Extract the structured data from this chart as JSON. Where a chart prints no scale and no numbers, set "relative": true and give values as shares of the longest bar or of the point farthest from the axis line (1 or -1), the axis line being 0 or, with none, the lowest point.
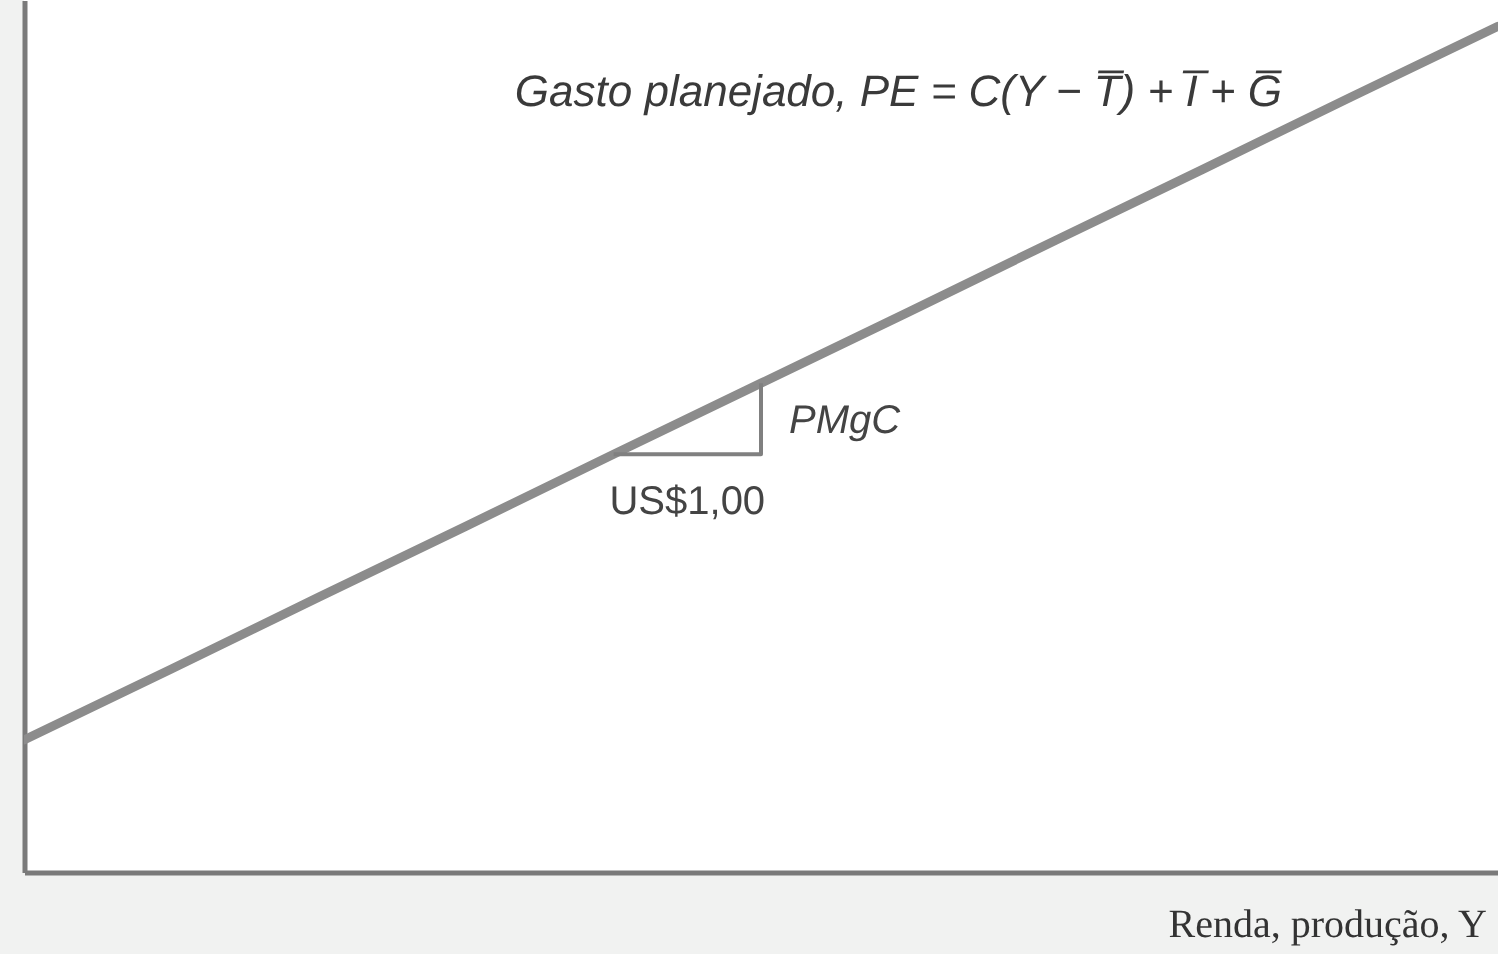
{
  "chart_data": {
    "type": "line",
    "relative": true,
    "categories": [
      null,
      null,
      null,
      null,
      null,
      null,
      null,
      null,
      null,
      null,
      null
    ],
    "xlabel": "Renda, produção, Y",
    "series": [
      {
        "name": "Gasto planejado, PE = C(Y − T̅) + I̅ + G̅",
        "color": "#8c8c8c",
        "values": [
          0.156,
          0.24,
          0.325,
          0.409,
          0.494,
          0.578,
          0.662,
          0.747,
          0.831,
          0.916,
          1
        ]
      },
      {
        "type": "step",
        "color": "#808080",
        "values": [
          null,
          null,
          null,
          null,
          0.494,
          0.578,
          null,
          null,
          null,
          null,
          null
        ]
      }
    ],
    "annotations": [
      "US$1,00",
      "PMgC"
    ]
  }
}
